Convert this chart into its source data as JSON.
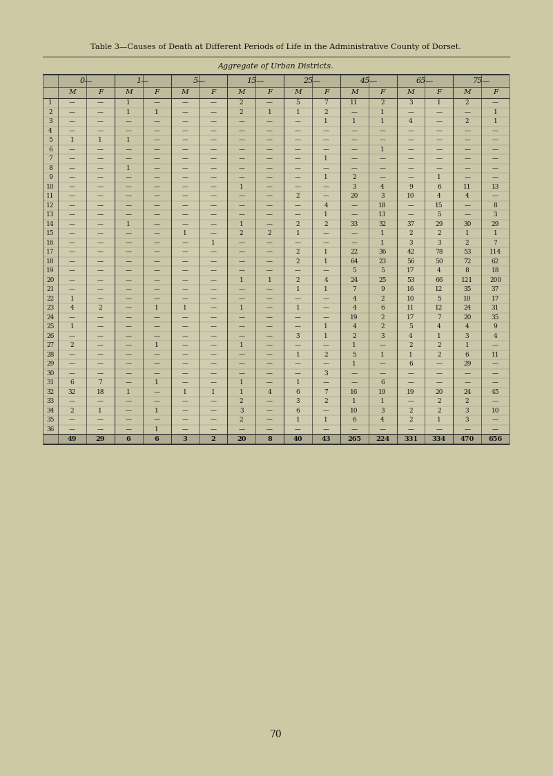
{
  "title": "Table 3—Causes of Death at Different Periods of Life in the Administrative County of Dorset.",
  "subtitle": "Aggregate of Urban Districts.",
  "bg_color": "#cdc9a5",
  "table_bg": "#d4d0b0",
  "age_groups": [
    "0—",
    "1—",
    "5—",
    "15—",
    "25—",
    "45—",
    "65—",
    "75—"
  ],
  "col_headers": [
    "M",
    "F",
    "M",
    "F",
    "M",
    "F",
    "M",
    "F",
    "M",
    "F",
    "M",
    "F",
    "M",
    "F",
    "M",
    "F"
  ],
  "row_labels": [
    "1",
    "2",
    "3",
    "4",
    "5",
    "6",
    "7",
    "8",
    "9",
    "10",
    "11",
    "12",
    "13",
    "14",
    "15",
    "16",
    "17",
    "18",
    "19",
    "20",
    "21",
    "22",
    "23",
    "24",
    "25",
    "26",
    "27",
    "28",
    "29",
    "30",
    "31",
    "32",
    "33",
    "34",
    "35",
    "36"
  ],
  "rows": [
    [
      "—",
      "—",
      "1",
      "—",
      "—",
      "—",
      "2",
      "—",
      "5",
      "7",
      "11",
      "2",
      "3",
      "1",
      "2",
      "—"
    ],
    [
      "—",
      "—",
      "1",
      "1",
      "—",
      "—",
      "2",
      "1",
      "1",
      "2",
      "—",
      "1",
      "—",
      "—",
      "—",
      "1"
    ],
    [
      "—",
      "—",
      "—",
      "—",
      "—",
      "—",
      "—",
      "—",
      "—",
      "1",
      "1",
      "1",
      "4",
      "—",
      "2",
      "1"
    ],
    [
      "—",
      "—",
      "—",
      "—",
      "—",
      "—",
      "—",
      "—",
      "—",
      "—",
      "—",
      "—",
      "—",
      "—",
      "—",
      "—"
    ],
    [
      "1",
      "1",
      "1",
      "—",
      "—",
      "—",
      "—",
      "—",
      "—",
      "—",
      "—",
      "—",
      "—",
      "—",
      "—",
      "—"
    ],
    [
      "—",
      "—",
      "—",
      "—",
      "—",
      "—",
      "—",
      "—",
      "—",
      "—",
      "—",
      "1",
      "—",
      "—",
      "—",
      "—"
    ],
    [
      "—",
      "—",
      "—",
      "—",
      "—",
      "—",
      "—",
      "—",
      "—",
      "1",
      "—",
      "—",
      "—",
      "—",
      "—",
      "—"
    ],
    [
      "—",
      "—",
      "1",
      "—",
      "—",
      "—",
      "—",
      "—",
      "—",
      "—",
      "—",
      "—",
      "—",
      "—",
      "—",
      "—"
    ],
    [
      "—",
      "—",
      "—",
      "—",
      "—",
      "—",
      "—",
      "—",
      "—",
      "1",
      "2",
      "—",
      "—",
      "1",
      "—",
      "—"
    ],
    [
      "—",
      "—",
      "—",
      "—",
      "—",
      "—",
      "1",
      "—",
      "—",
      "—",
      "3",
      "4",
      "9",
      "6",
      "11",
      "13"
    ],
    [
      "—",
      "—",
      "—",
      "—",
      "—",
      "—",
      "—",
      "—",
      "2",
      "—",
      "20",
      "3",
      "10",
      "4",
      "4",
      "—"
    ],
    [
      "—",
      "—",
      "—",
      "—",
      "—",
      "—",
      "—",
      "—",
      "—",
      "4",
      "—",
      "18",
      "—",
      "15",
      "—",
      "8"
    ],
    [
      "—",
      "—",
      "—",
      "—",
      "—",
      "—",
      "—",
      "—",
      "—",
      "1",
      "—",
      "13",
      "—",
      "5",
      "—",
      "3"
    ],
    [
      "—",
      "—",
      "1",
      "—",
      "—",
      "—",
      "1",
      "—",
      "2",
      "2",
      "33",
      "32",
      "37",
      "29",
      "30",
      "29"
    ],
    [
      "—",
      "—",
      "—",
      "—",
      "1",
      "—",
      "2",
      "2",
      "1",
      "—",
      "—",
      "1",
      "2",
      "2",
      "1",
      "1"
    ],
    [
      "—",
      "—",
      "—",
      "—",
      "—",
      "1",
      "—",
      "—",
      "—",
      "—",
      "—",
      "1",
      "3",
      "3",
      "2",
      "7"
    ],
    [
      "—",
      "—",
      "—",
      "—",
      "—",
      "—",
      "—",
      "—",
      "2",
      "1",
      "22",
      "36",
      "42",
      "78",
      "53",
      "114"
    ],
    [
      "—",
      "—",
      "—",
      "—",
      "—",
      "—",
      "—",
      "—",
      "2",
      "1",
      "64",
      "23",
      "56",
      "50",
      "72",
      "62"
    ],
    [
      "—",
      "—",
      "—",
      "—",
      "—",
      "—",
      "—",
      "—",
      "—",
      "—",
      "5",
      "5",
      "17",
      "4",
      "8",
      "18"
    ],
    [
      "—",
      "—",
      "—",
      "—",
      "—",
      "—",
      "1",
      "1",
      "2",
      "4",
      "24",
      "25",
      "53",
      "66",
      "121",
      "200"
    ],
    [
      "—",
      "—",
      "—",
      "—",
      "—",
      "—",
      "—",
      "—",
      "1",
      "1",
      "7",
      "9",
      "16",
      "12",
      "35",
      "37"
    ],
    [
      "1",
      "—",
      "—",
      "—",
      "—",
      "—",
      "—",
      "—",
      "—",
      "—",
      "4",
      "2",
      "10",
      "5",
      "10",
      "17"
    ],
    [
      "4",
      "2",
      "—",
      "1",
      "1",
      "—",
      "1",
      "—",
      "1",
      "—",
      "4",
      "6",
      "11",
      "12",
      "24",
      "31"
    ],
    [
      "—",
      "—",
      "—",
      "—",
      "—",
      "—",
      "—",
      "—",
      "—",
      "—",
      "19",
      "2",
      "17",
      "7",
      "20",
      "35"
    ],
    [
      "1",
      "—",
      "—",
      "—",
      "—",
      "—",
      "—",
      "—",
      "—",
      "1",
      "4",
      "2",
      "5",
      "4",
      "4",
      "9"
    ],
    [
      "—",
      "—",
      "—",
      "—",
      "—",
      "—",
      "—",
      "—",
      "3",
      "1",
      "2",
      "3",
      "4",
      "1",
      "3",
      "4"
    ],
    [
      "2",
      "—",
      "—",
      "1",
      "—",
      "—",
      "1",
      "—",
      "—",
      "—",
      "1",
      "—",
      "2",
      "2",
      "1",
      "—"
    ],
    [
      "—",
      "—",
      "—",
      "—",
      "—",
      "—",
      "—",
      "—",
      "1",
      "2",
      "5",
      "1",
      "1",
      "2",
      "6",
      "11"
    ],
    [
      "—",
      "—",
      "—",
      "—",
      "—",
      "—",
      "—",
      "—",
      "—",
      "—",
      "1",
      "—",
      "6",
      "—",
      "29",
      "—"
    ],
    [
      "—",
      "—",
      "—",
      "—",
      "—",
      "—",
      "—",
      "—",
      "—",
      "3",
      "—",
      "—",
      "—",
      "—",
      "—",
      "—"
    ],
    [
      "6",
      "7",
      "—",
      "1",
      "—",
      "—",
      "1",
      "—",
      "1",
      "—",
      "—",
      "6",
      "—",
      "—",
      "—",
      "—"
    ],
    [
      "32",
      "18",
      "1",
      "—",
      "1",
      "1",
      "1",
      "4",
      "6",
      "7",
      "16",
      "19",
      "19",
      "20",
      "24",
      "45"
    ],
    [
      "—",
      "—",
      "—",
      "—",
      "—",
      "—",
      "2",
      "—",
      "3",
      "2",
      "1",
      "1",
      "—",
      "2",
      "2",
      "—"
    ],
    [
      "2",
      "1",
      "—",
      "1",
      "—",
      "—",
      "3",
      "—",
      "6",
      "—",
      "10",
      "3",
      "2",
      "2",
      "3",
      "10"
    ],
    [
      "—",
      "—",
      "—",
      "—",
      "—",
      "—",
      "2",
      "—",
      "1",
      "1",
      "6",
      "4",
      "2",
      "1",
      "3",
      "—"
    ],
    [
      "—",
      "—",
      "—",
      "1",
      "—",
      "—",
      "—",
      "—",
      "—",
      "—",
      "—",
      "—",
      "—",
      "—",
      "—",
      "—"
    ]
  ],
  "totals": [
    "49",
    "29",
    "6",
    "6",
    "3",
    "2",
    "20",
    "8",
    "40",
    "43",
    "265",
    "224",
    "331",
    "334",
    "470",
    "656"
  ],
  "page_num": "70"
}
